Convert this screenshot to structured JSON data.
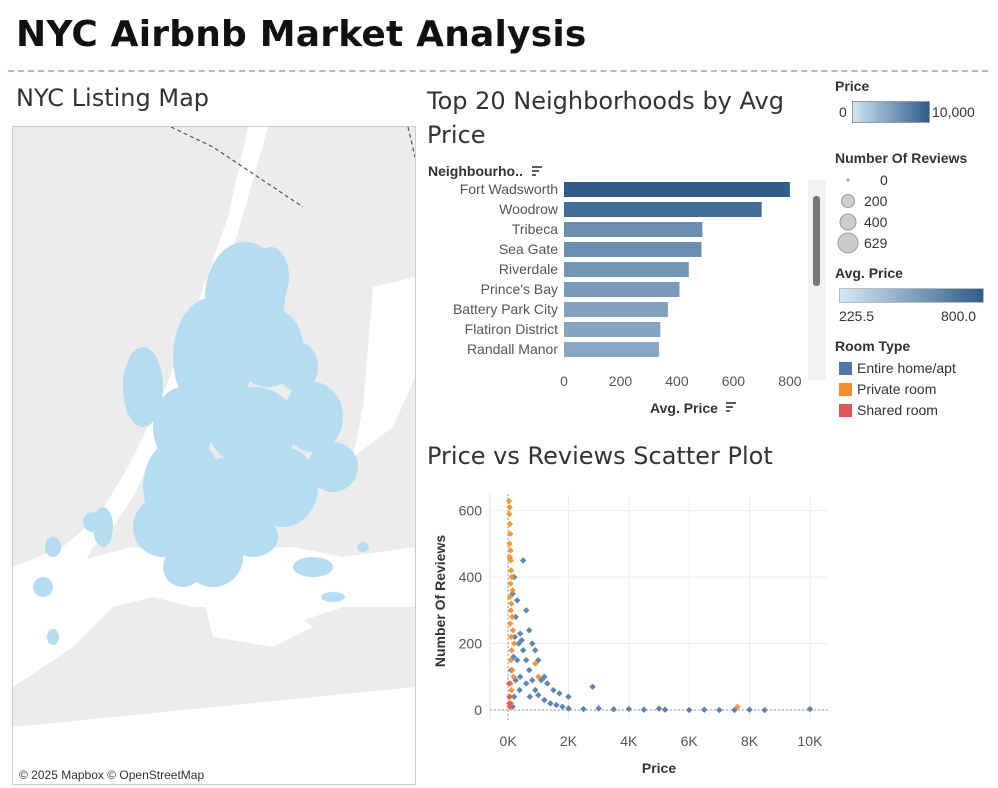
{
  "dashboard": {
    "title": "NYC Airbnb Market Analysis"
  },
  "map": {
    "title": "NYC Listing Map",
    "credit": "© 2025 Mapbox © OpenStreetMap"
  },
  "legends": {
    "price": {
      "title": "Price",
      "min": "0",
      "max": "10,000",
      "color_low": "#cfe3f3",
      "color_high": "#2f5d8a"
    },
    "reviews": {
      "title": "Number Of Reviews",
      "items": [
        "0",
        "200",
        "400",
        "629"
      ],
      "values": [
        0,
        200,
        400,
        629
      ]
    },
    "avg_price": {
      "title": "Avg. Price",
      "min": "225.5",
      "max": "800.0",
      "color_low": "#d6e8f7",
      "color_high": "#2f5d8a"
    },
    "room_type": {
      "title": "Room Type",
      "items": [
        {
          "label": "Entire home/apt",
          "color": "#4e79a7"
        },
        {
          "label": "Private room",
          "color": "#f28e2b"
        },
        {
          "label": "Shared room",
          "color": "#e15759"
        }
      ]
    }
  },
  "chart_data": [
    {
      "type": "bar",
      "orientation": "horizontal",
      "title": "Top 20 Neighborhoods by Avg Price",
      "y_header": "Neighbourho..",
      "xlabel": "Avg. Price",
      "categories": [
        "Fort Wadsworth",
        "Woodrow",
        "Tribeca",
        "Sea Gate",
        "Riverdale",
        "Prince's Bay",
        "Battery Park City",
        "Flatiron District",
        "Randall Manor"
      ],
      "values": [
        800,
        700,
        490,
        487,
        442,
        409,
        368,
        341,
        336
      ],
      "xlim": [
        0,
        850
      ],
      "xticks": [
        0,
        200,
        400,
        600,
        800
      ],
      "color_scale": [
        "#d6e8f7",
        "#2f5d8a"
      ]
    },
    {
      "type": "scatter",
      "title": "Price vs Reviews Scatter Plot",
      "xlabel": "Price",
      "ylabel": "Number Of Reviews",
      "xlim": [
        -600,
        10600
      ],
      "ylim": [
        -30,
        650
      ],
      "xticks": [
        0,
        2000,
        4000,
        6000,
        8000,
        10000
      ],
      "xtick_labels": [
        "0K",
        "2K",
        "4K",
        "6K",
        "8K",
        "10K"
      ],
      "yticks": [
        0,
        200,
        400,
        600
      ],
      "grid": true,
      "series": [
        {
          "name": "Entire home/apt",
          "color": "#4e79a7",
          "points": [
            [
              150,
              10
            ],
            [
              200,
              40
            ],
            [
              250,
              90
            ],
            [
              300,
              150
            ],
            [
              350,
              200
            ],
            [
              400,
              230
            ],
            [
              450,
              210
            ],
            [
              500,
              180
            ],
            [
              600,
              150
            ],
            [
              700,
              120
            ],
            [
              800,
              90
            ],
            [
              900,
              60
            ],
            [
              1000,
              45
            ],
            [
              1200,
              30
            ],
            [
              1400,
              20
            ],
            [
              1600,
              15
            ],
            [
              1800,
              10
            ],
            [
              2000,
              5
            ],
            [
              2500,
              3
            ],
            [
              3000,
              5
            ],
            [
              3500,
              2
            ],
            [
              4000,
              3
            ],
            [
              4500,
              1
            ],
            [
              5000,
              4
            ],
            [
              5200,
              1
            ],
            [
              6000,
              0
            ],
            [
              6500,
              1
            ],
            [
              7000,
              0
            ],
            [
              7500,
              0
            ],
            [
              8000,
              1
            ],
            [
              8500,
              0
            ],
            [
              10000,
              3
            ],
            [
              500,
              450
            ],
            [
              700,
              240
            ],
            [
              900,
              180
            ],
            [
              1100,
              90
            ],
            [
              1300,
              80
            ],
            [
              1500,
              60
            ],
            [
              1700,
              50
            ],
            [
              2000,
              40
            ],
            [
              2800,
              70
            ],
            [
              300,
              330
            ],
            [
              250,
              280
            ],
            [
              200,
              400
            ],
            [
              150,
              350
            ],
            [
              600,
              300
            ],
            [
              800,
              200
            ],
            [
              1000,
              150
            ],
            [
              400,
              100
            ],
            [
              600,
              80
            ],
            [
              1200,
              100
            ],
            [
              100,
              120
            ],
            [
              180,
              160
            ],
            [
              220,
              220
            ],
            [
              380,
              60
            ],
            [
              720,
              40
            ]
          ]
        },
        {
          "name": "Private room",
          "color": "#f28e2b",
          "points": [
            [
              30,
              629
            ],
            [
              50,
              610
            ],
            [
              40,
              590
            ],
            [
              60,
              560
            ],
            [
              70,
              530
            ],
            [
              50,
              500
            ],
            [
              80,
              480
            ],
            [
              60,
              460
            ],
            [
              90,
              450
            ],
            [
              100,
              420
            ],
            [
              120,
              400
            ],
            [
              80,
              380
            ],
            [
              150,
              360
            ],
            [
              60,
              340
            ],
            [
              110,
              320
            ],
            [
              90,
              300
            ],
            [
              130,
              280
            ],
            [
              70,
              260
            ],
            [
              160,
              240
            ],
            [
              100,
              220
            ],
            [
              200,
              200
            ],
            [
              120,
              180
            ],
            [
              90,
              150
            ],
            [
              140,
              120
            ],
            [
              180,
              100
            ],
            [
              80,
              80
            ],
            [
              110,
              60
            ],
            [
              60,
              40
            ],
            [
              100,
              20
            ],
            [
              50,
              10
            ],
            [
              900,
              140
            ],
            [
              1000,
              100
            ],
            [
              7600,
              10
            ]
          ]
        },
        {
          "name": "Shared room",
          "color": "#e15759",
          "points": [
            [
              30,
              80
            ],
            [
              50,
              40
            ],
            [
              40,
              20
            ],
            [
              60,
              10
            ]
          ]
        }
      ]
    }
  ]
}
